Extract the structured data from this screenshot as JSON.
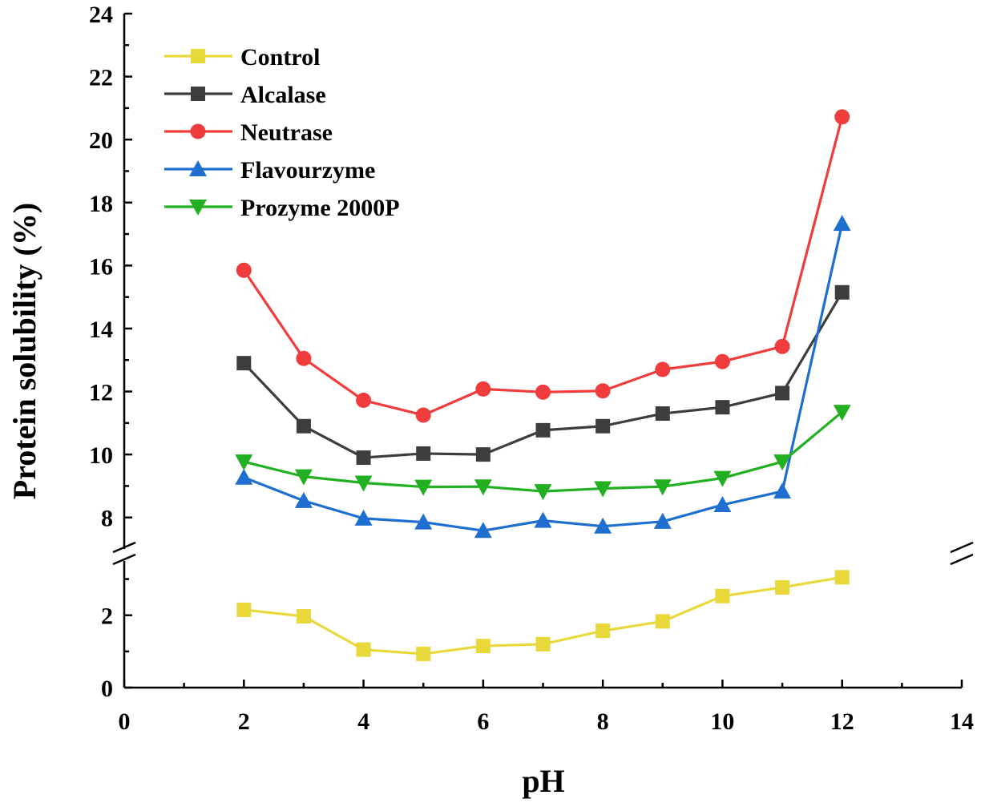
{
  "chart_data": {
    "type": "line",
    "xlabel": "pH",
    "ylabel": "Protein solubility (%)",
    "xlim": [
      0,
      14
    ],
    "xticks": [
      0,
      2,
      4,
      6,
      8,
      10,
      12,
      14
    ],
    "y_broken_axis": true,
    "ylim_lower": [
      0,
      3.5
    ],
    "ylim_upper": [
      7,
      24
    ],
    "yticks_lower": [
      0,
      2
    ],
    "yticks_upper": [
      8,
      10,
      12,
      14,
      16,
      18,
      20,
      22,
      24
    ],
    "x": [
      2,
      3,
      4,
      5,
      6,
      7,
      8,
      9,
      10,
      11,
      12
    ],
    "series": [
      {
        "name": "Control",
        "color": "#e8d83a",
        "marker": "square",
        "values": [
          2.15,
          1.97,
          1.05,
          0.93,
          1.15,
          1.2,
          1.57,
          1.83,
          2.53,
          2.77,
          3.05
        ]
      },
      {
        "name": "Alcalase",
        "color": "#3d3d3d",
        "marker": "square",
        "values": [
          12.9,
          10.9,
          9.9,
          10.03,
          10.0,
          10.77,
          10.9,
          11.3,
          11.5,
          11.95,
          15.15
        ]
      },
      {
        "name": "Neutrase",
        "color": "#f03c3c",
        "marker": "circle",
        "values": [
          15.85,
          13.05,
          11.72,
          11.25,
          12.08,
          11.98,
          12.02,
          12.7,
          12.95,
          13.43,
          20.72
        ]
      },
      {
        "name": "Flavourzyme",
        "color": "#1f6fd1",
        "marker": "triangle-up",
        "values": [
          9.27,
          8.53,
          7.97,
          7.85,
          7.58,
          7.9,
          7.72,
          7.87,
          8.4,
          8.83,
          17.33
        ]
      },
      {
        "name": "Prozyme 2000P",
        "color": "#22b022",
        "marker": "triangle-down",
        "values": [
          9.77,
          9.3,
          9.1,
          8.97,
          8.98,
          8.83,
          8.92,
          8.98,
          9.25,
          9.77,
          11.35
        ]
      }
    ]
  }
}
